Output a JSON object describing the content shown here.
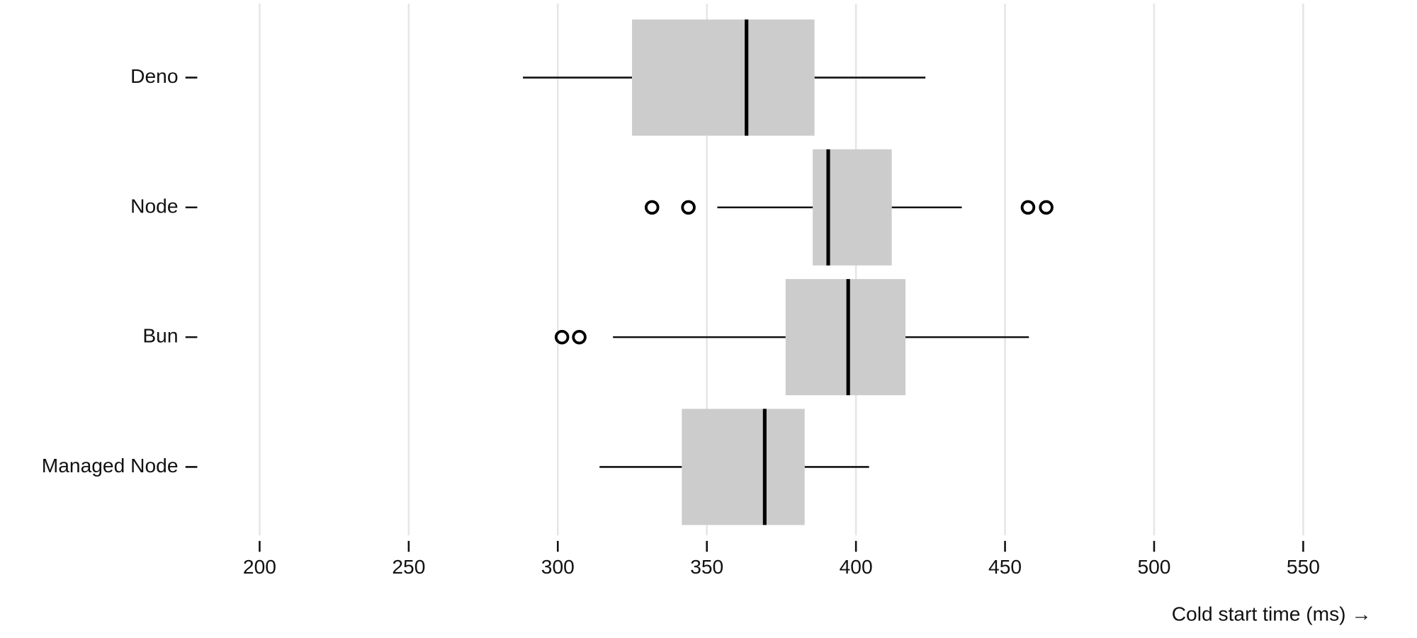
{
  "chart_data": {
    "type": "boxplot",
    "orientation": "horizontal",
    "x_label": "Cold start time (ms) →",
    "categories": [
      "Deno",
      "Node",
      "Bun",
      "Managed Node"
    ],
    "stats": [
      {
        "low": 288.3,
        "q1": 324.9,
        "median": 363.3,
        "q3": 386.1,
        "high": 423.3,
        "outliers": []
      },
      {
        "low": 353.5,
        "q1": 385.5,
        "median": 390.7,
        "q3": 412,
        "high": 435.5,
        "outliers": [
          331.6,
          343.8,
          457.7,
          463.8
        ]
      },
      {
        "low": 318.5,
        "q1": 376.4,
        "median": 397.4,
        "q3": 416.6,
        "high": 458,
        "outliers": [
          301.4,
          307.2
        ]
      },
      {
        "low": 314,
        "q1": 341.6,
        "median": 369.4,
        "q3": 382.8,
        "high": 404.4,
        "outliers": []
      }
    ],
    "box_color": "#cccccc",
    "xlim": [
      180,
      582
    ],
    "xticks": [
      200,
      250,
      300,
      350,
      400,
      450,
      500,
      550
    ],
    "grid": true
  }
}
